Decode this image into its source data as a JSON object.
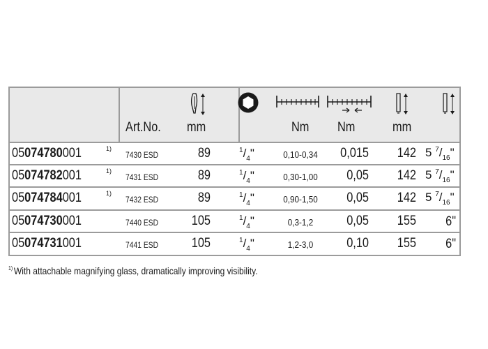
{
  "header": {
    "artno_label": "Art.No.",
    "blade_unit": "mm",
    "nm_unit_1": "Nm",
    "nm_unit_2": "Nm",
    "length_unit": "mm",
    "icons": [
      "screwdriver-length-icon",
      "hex-socket-icon",
      "torque-range-scale-icon",
      "torque-increment-scale-icon",
      "bit-length-icon",
      "overall-length-inch-icon"
    ]
  },
  "rows": [
    {
      "art_prefix": "05",
      "art_bold": "074780",
      "art_suffix": "001",
      "ref": "1)",
      "model": "7430 ESD",
      "length_mm": "89",
      "drive_num": "1",
      "drive_den": "4",
      "drive_mark": "\"",
      "torque_range": "0,10-0,34",
      "increment": "0,015",
      "bit_mm": "142",
      "inch_whole": "5",
      "inch_num": "7",
      "inch_den": "16",
      "inch_mark": "\""
    },
    {
      "art_prefix": "05",
      "art_bold": "074782",
      "art_suffix": "001",
      "ref": "1)",
      "model": "7431 ESD",
      "length_mm": "89",
      "drive_num": "1",
      "drive_den": "4",
      "drive_mark": "\"",
      "torque_range": "0,30-1,00",
      "increment": "0,05",
      "bit_mm": "142",
      "inch_whole": "5",
      "inch_num": "7",
      "inch_den": "16",
      "inch_mark": "\""
    },
    {
      "art_prefix": "05",
      "art_bold": "074784",
      "art_suffix": "001",
      "ref": "1)",
      "model": "7432 ESD",
      "length_mm": "89",
      "drive_num": "1",
      "drive_den": "4",
      "drive_mark": "\"",
      "torque_range": "0,90-1,50",
      "increment": "0,05",
      "bit_mm": "142",
      "inch_whole": "5",
      "inch_num": "7",
      "inch_den": "16",
      "inch_mark": "\""
    },
    {
      "art_prefix": "05",
      "art_bold": "074730",
      "art_suffix": "001",
      "ref": "",
      "model": "7440 ESD",
      "length_mm": "105",
      "drive_num": "1",
      "drive_den": "4",
      "drive_mark": "\"",
      "torque_range": "0,3-1,2",
      "increment": "0,05",
      "bit_mm": "155",
      "inch_whole": "6\"",
      "inch_num": "",
      "inch_den": "",
      "inch_mark": ""
    },
    {
      "art_prefix": "05",
      "art_bold": "074731",
      "art_suffix": "001",
      "ref": "",
      "model": "7441 ESD",
      "length_mm": "105",
      "drive_num": "1",
      "drive_den": "4",
      "drive_mark": "\"",
      "torque_range": "1,2-3,0",
      "increment": "0,10",
      "bit_mm": "155",
      "inch_whole": "6\"",
      "inch_num": "",
      "inch_den": "",
      "inch_mark": ""
    }
  ],
  "footnote": {
    "marker": "1)",
    "text": "With attachable magnifying glass, dramatically improving visibility."
  }
}
